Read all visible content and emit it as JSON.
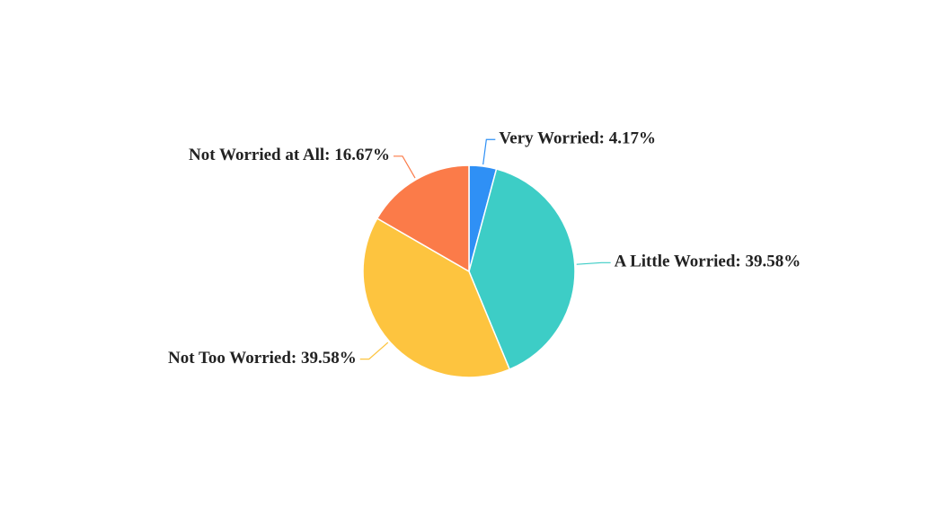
{
  "chart_data": {
    "type": "pie",
    "values": [
      4.17,
      39.58,
      39.58,
      16.67
    ],
    "value_labels": [
      "Very Worried: 4.17%",
      "A Little Worried: 39.58%",
      "Not Too Worried: 39.58%",
      "Not Worried at All: 16.67%"
    ],
    "colors": [
      "#2f90f5",
      "#3dcdc6",
      "#fdc43f",
      "#fb7b49"
    ]
  }
}
